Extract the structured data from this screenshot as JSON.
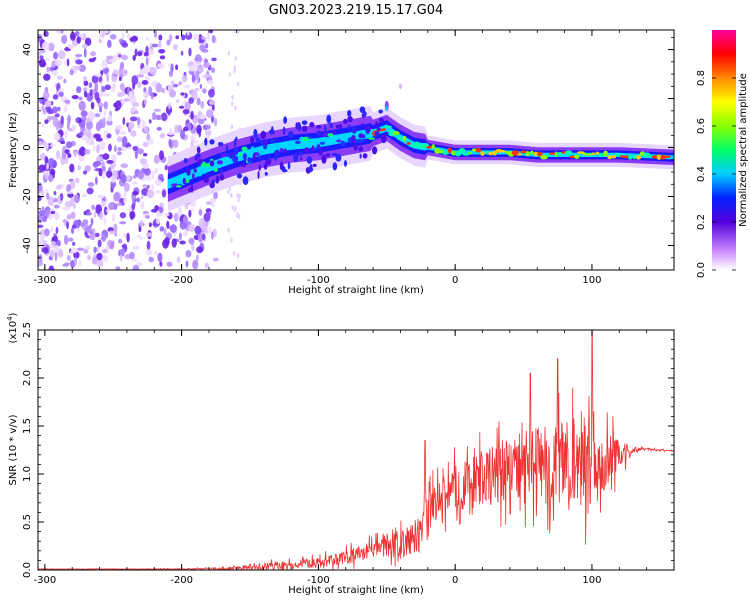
{
  "title": "GN03.2023.219.15.17.G04",
  "chart_data": [
    {
      "type": "heatmap",
      "name": "spectrogram",
      "xlabel": "Height of straight line (km)",
      "ylabel": "Frequency (Hz)",
      "xlim": [
        -305,
        160
      ],
      "ylim": [
        -50,
        48
      ],
      "xticks": [
        -300,
        -200,
        -100,
        0,
        100
      ],
      "xtick_labels": [
        "-300",
        "-200",
        "-100",
        "0",
        "100"
      ],
      "yticks": [
        -40,
        -20,
        0,
        20,
        40
      ],
      "ytick_labels": [
        "-40",
        "-20",
        "0",
        "20",
        "40"
      ],
      "ridge": {
        "x": [
          -210,
          -180,
          -160,
          -140,
          -120,
          -100,
          -80,
          -60,
          -50,
          -45,
          -40,
          -30,
          -20,
          0,
          20,
          40,
          60,
          80,
          100,
          120,
          160
        ],
        "y": [
          -15,
          -8,
          -4,
          -1,
          1,
          2,
          4,
          6,
          8,
          6,
          4,
          1,
          0,
          -2,
          -2,
          -2,
          -3,
          -3,
          -3,
          -3,
          -4
        ]
      },
      "noise_region_x": [
        -305,
        -175
      ],
      "colorbar": {
        "label": "Normalized spectral amplitude",
        "range": [
          0.0,
          1.0
        ],
        "ticks": [
          0.0,
          0.2,
          0.4,
          0.6,
          0.8
        ],
        "tick_labels": [
          "0.0",
          "0.2",
          "0.4",
          "0.6",
          "0.8"
        ]
      }
    },
    {
      "type": "line",
      "name": "snr",
      "xlabel": "Height of straight line (km)",
      "ylabel": "SNR (10 * v/v)",
      "exponent_label": "(x10",
      "exponent_power": "4",
      "exponent_close": ")",
      "xlim": [
        -305,
        160
      ],
      "ylim": [
        0.0,
        2.5
      ],
      "xticks": [
        -300,
        -200,
        -100,
        0,
        100
      ],
      "xtick_labels": [
        "-300",
        "-200",
        "-100",
        "0",
        "100"
      ],
      "yticks": [
        0.0,
        0.5,
        1.0,
        1.5,
        2.0,
        2.5
      ],
      "ytick_labels": [
        "0.0",
        "0.5",
        "1.0",
        "1.5",
        "2.0",
        "2.5"
      ],
      "color": "#ee3333",
      "envelope": {
        "x": [
          -305,
          -250,
          -200,
          -170,
          -150,
          -120,
          -100,
          -80,
          -60,
          -40,
          -25,
          -20,
          -10,
          0,
          20,
          40,
          60,
          80,
          100,
          110,
          120,
          130,
          140,
          160
        ],
        "baseline": [
          0.01,
          0.01,
          0.01,
          0.015,
          0.03,
          0.05,
          0.08,
          0.12,
          0.22,
          0.28,
          0.35,
          0.55,
          0.75,
          0.85,
          0.95,
          1.05,
          1.1,
          1.1,
          1.1,
          1.15,
          1.2,
          1.25,
          1.26,
          1.24
        ],
        "spread": [
          0.005,
          0.005,
          0.008,
          0.02,
          0.06,
          0.08,
          0.1,
          0.14,
          0.18,
          0.25,
          0.3,
          0.45,
          0.4,
          0.45,
          0.55,
          0.65,
          0.75,
          0.8,
          0.85,
          0.6,
          0.3,
          0.05,
          0.02,
          0.01
        ]
      },
      "peaks": [
        {
          "x": 100,
          "y": 2.5
        },
        {
          "x": 75,
          "y": 2.2
        },
        {
          "x": 55,
          "y": 2.05
        },
        {
          "x": -22,
          "y": 1.35
        }
      ]
    }
  ]
}
